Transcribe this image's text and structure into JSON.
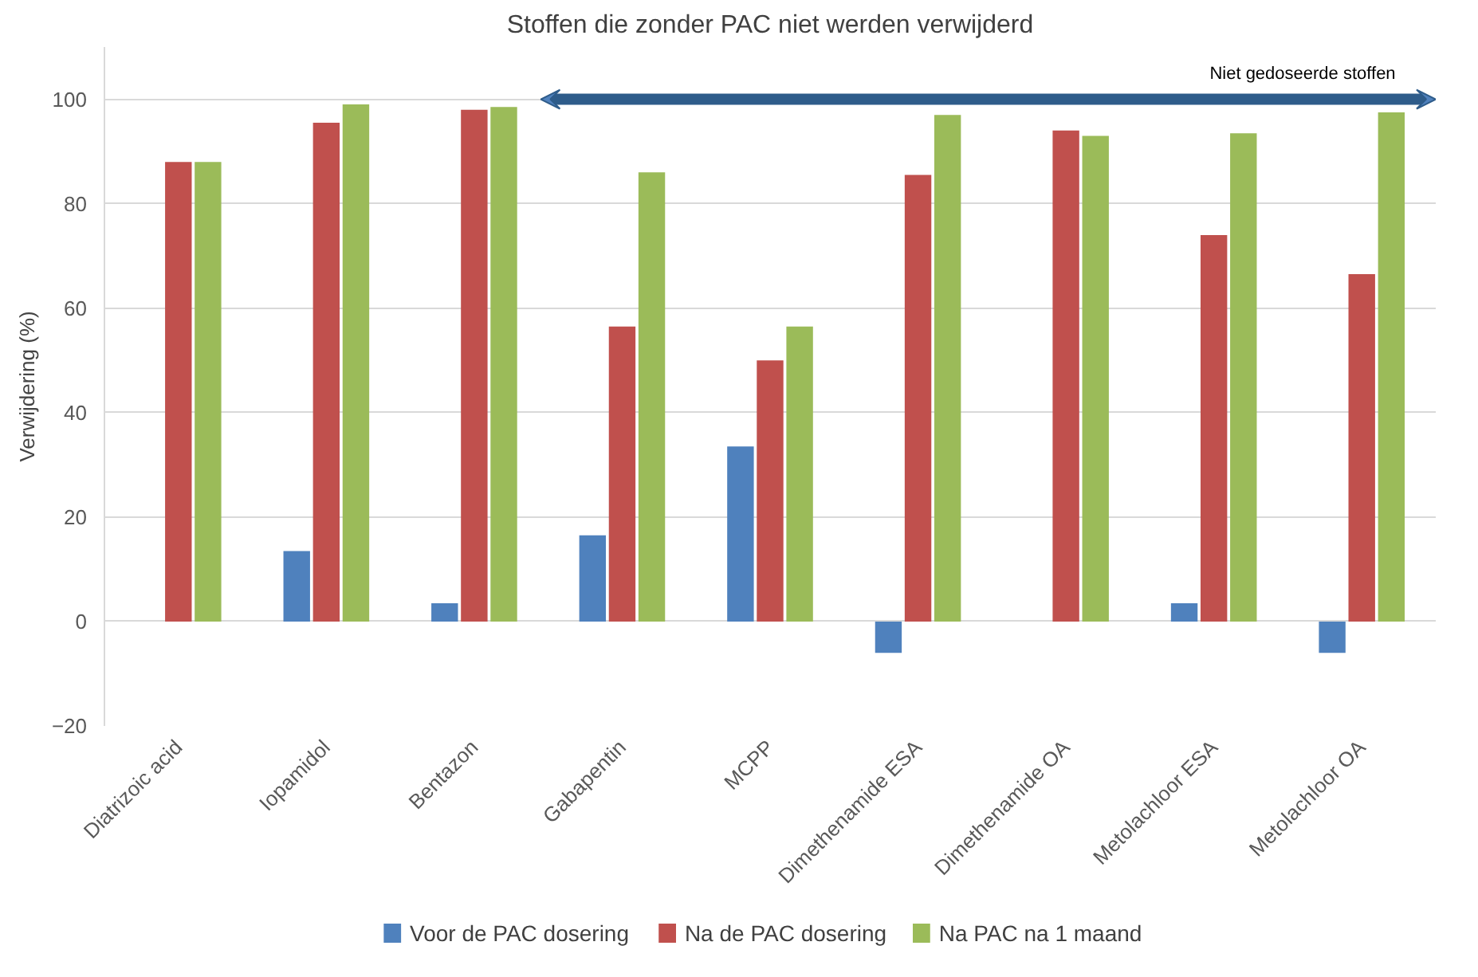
{
  "chart_data": {
    "type": "bar",
    "title": "Stoffen die zonder PAC niet werden verwijderd",
    "ylabel": "Verwijdering (%)",
    "categories": [
      "Diatrizoic acid",
      "Iopamidol",
      "Bentazon",
      "Gabapentin",
      "MCPP",
      "Dimethenamide ESA",
      "Dimethenamide OA",
      "Metolachloor ESA",
      "Metolachloor OA"
    ],
    "series": [
      {
        "name": "Voor de PAC dosering",
        "color": "#4f81bd",
        "values": [
          null,
          13.5,
          3.5,
          16.5,
          33.5,
          -6,
          null,
          3.5,
          -6
        ]
      },
      {
        "name": "Na de PAC dosering",
        "color": "#c0504d",
        "values": [
          88,
          95.5,
          98,
          56.5,
          50,
          85.5,
          94,
          74,
          66.5
        ]
      },
      {
        "name": "Na PAC na 1 maand",
        "color": "#9bbb59",
        "values": [
          88,
          99,
          98.5,
          86,
          56.5,
          97,
          93,
          93.5,
          97.5
        ]
      }
    ],
    "annotations": [
      "Niet gedoseerde stoffen"
    ],
    "ylim": [
      -20,
      110
    ],
    "yticks": [
      -20,
      0,
      20,
      40,
      60,
      80,
      100
    ],
    "grid": "y",
    "legend": "bottom"
  }
}
